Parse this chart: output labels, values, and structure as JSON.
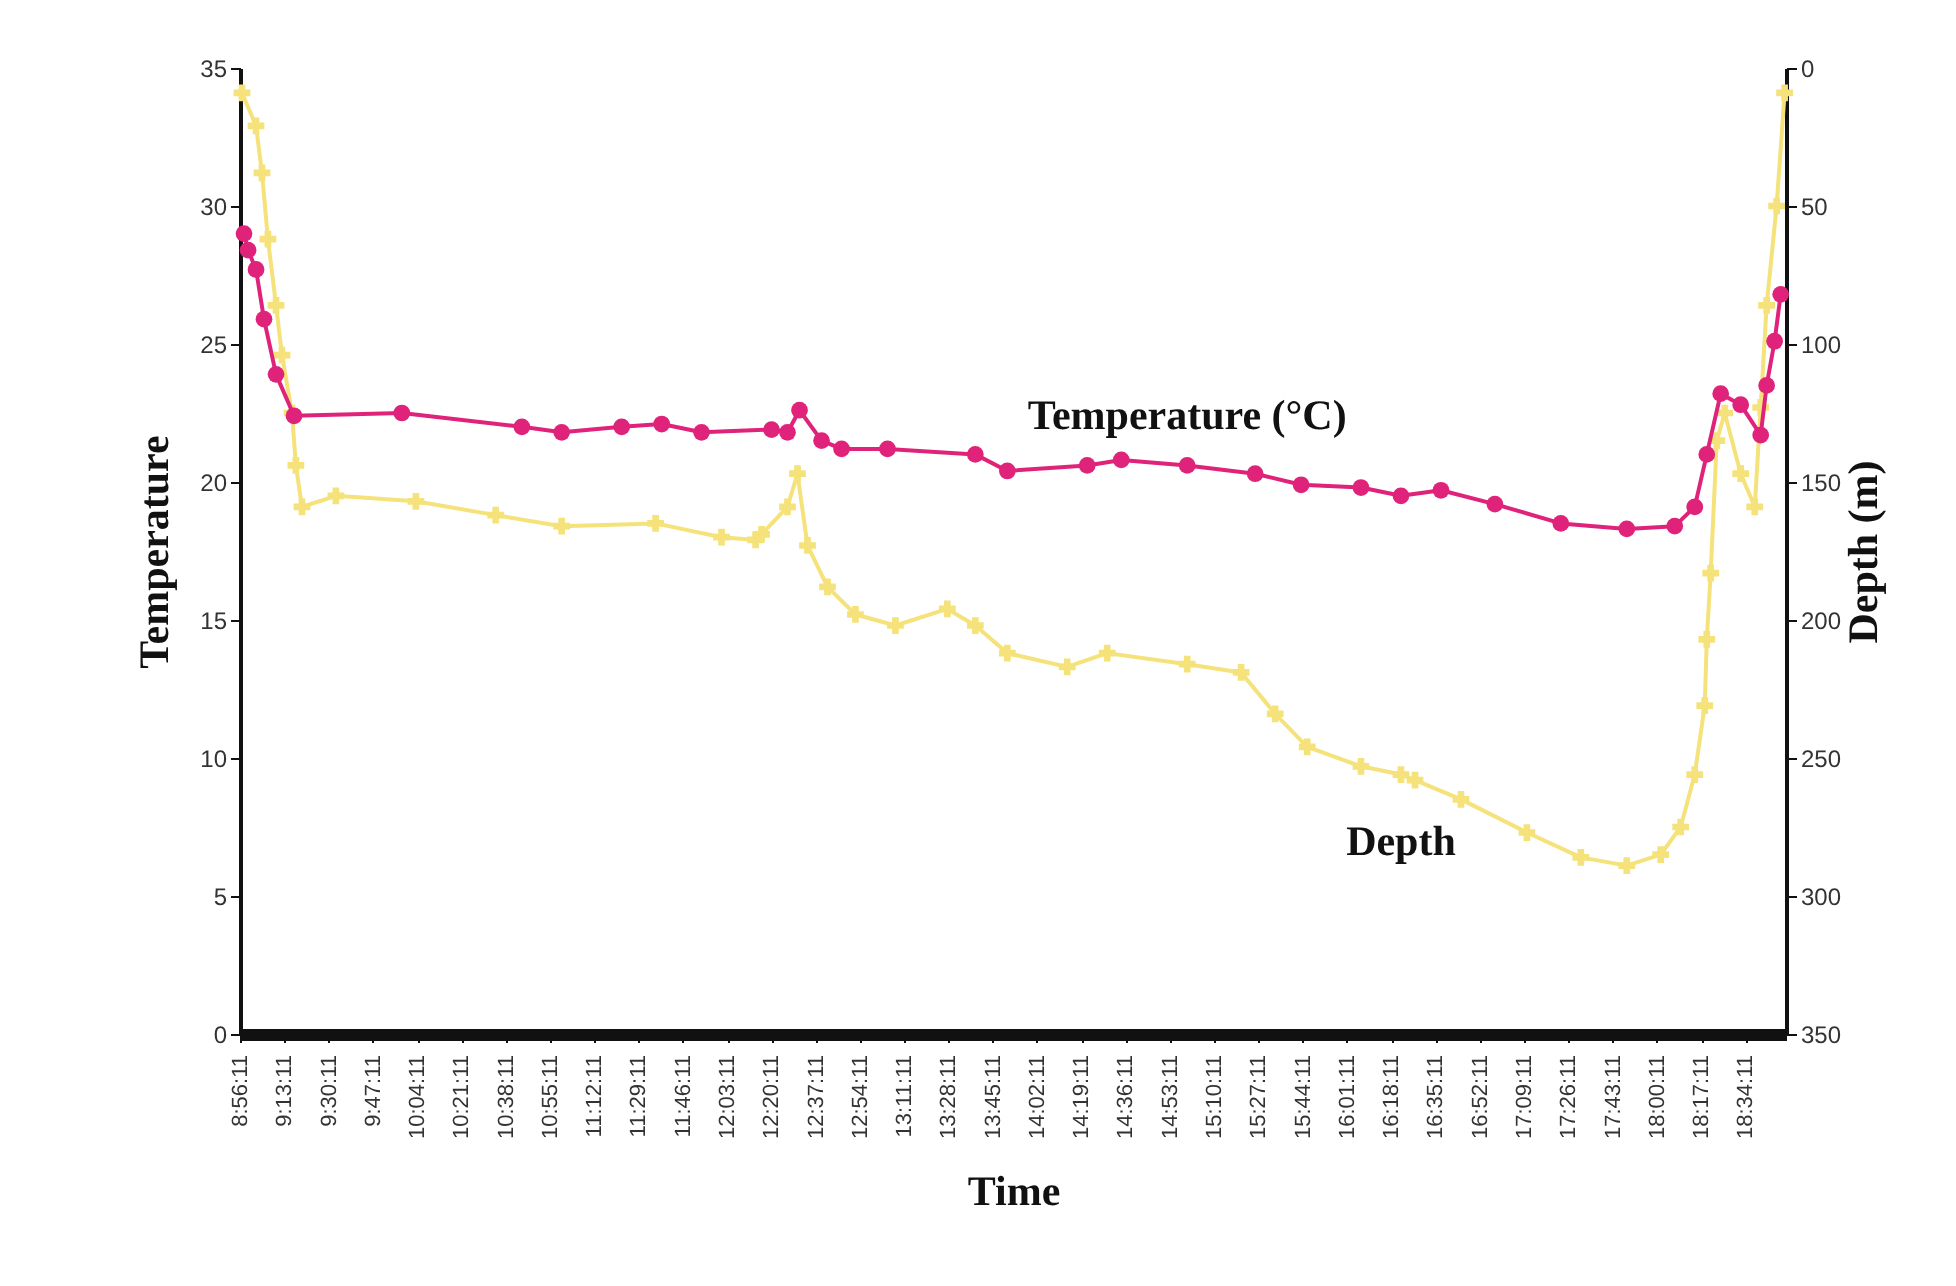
{
  "chart_data": {
    "type": "line",
    "xlabel": "Time",
    "ylabel": "Temperature",
    "y2label": "Depth (m)",
    "xlim": [
      8.9364,
      18.83
    ],
    "xticks": [
      {
        "value": 8.9364,
        "label": "8:56:11"
      },
      {
        "value": 9.2197,
        "label": "9:13:11"
      },
      {
        "value": 9.5031,
        "label": "9:30:11"
      },
      {
        "value": 9.7864,
        "label": "9:47:11"
      },
      {
        "value": 10.0697,
        "label": "10:04:11"
      },
      {
        "value": 10.3531,
        "label": "10:21:11"
      },
      {
        "value": 10.6364,
        "label": "10:38:11"
      },
      {
        "value": 10.9197,
        "label": "10:55:11"
      },
      {
        "value": 11.2031,
        "label": "11:12:11"
      },
      {
        "value": 11.4864,
        "label": "11:29:11"
      },
      {
        "value": 11.7697,
        "label": "11:46:11"
      },
      {
        "value": 12.0531,
        "label": "12:03:11"
      },
      {
        "value": 12.3364,
        "label": "12:20:11"
      },
      {
        "value": 12.6197,
        "label": "12:37:11"
      },
      {
        "value": 12.9031,
        "label": "12:54:11"
      },
      {
        "value": 13.1864,
        "label": "13:11:11"
      },
      {
        "value": 13.4697,
        "label": "13:28:11"
      },
      {
        "value": 13.7531,
        "label": "13:45:11"
      },
      {
        "value": 14.0364,
        "label": "14:02:11"
      },
      {
        "value": 14.3197,
        "label": "14:19:11"
      },
      {
        "value": 14.6031,
        "label": "14:36:11"
      },
      {
        "value": 14.8864,
        "label": "14:53:11"
      },
      {
        "value": 15.1697,
        "label": "15:10:11"
      },
      {
        "value": 15.4531,
        "label": "15:27:11"
      },
      {
        "value": 15.7364,
        "label": "15:44:11"
      },
      {
        "value": 16.0197,
        "label": "16:01:11"
      },
      {
        "value": 16.3031,
        "label": "16:18:11"
      },
      {
        "value": 16.5864,
        "label": "16:35:11"
      },
      {
        "value": 16.8697,
        "label": "16:52:11"
      },
      {
        "value": 17.1531,
        "label": "17:09:11"
      },
      {
        "value": 17.4364,
        "label": "17:26:11"
      },
      {
        "value": 17.7197,
        "label": "17:43:11"
      },
      {
        "value": 18.0031,
        "label": "18:00:11"
      },
      {
        "value": 18.2864,
        "label": "18:17:11"
      },
      {
        "value": 18.5697,
        "label": "18:34:11"
      }
    ],
    "ylim": [
      0,
      35
    ],
    "yticks": [
      0,
      5,
      10,
      15,
      20,
      25,
      30,
      35
    ],
    "y2lim": [
      350,
      0
    ],
    "y2ticks": [
      0,
      50,
      100,
      150,
      200,
      250,
      300,
      350
    ],
    "series": [
      {
        "name": "Temperature (°C)",
        "color": "#e0237a",
        "marker": "circle",
        "x": [
          8.962,
          8.988,
          9.039,
          9.09,
          9.167,
          9.282,
          9.972,
          10.74,
          10.995,
          11.379,
          11.635,
          11.89,
          12.338,
          12.44,
          12.517,
          12.658,
          12.786,
          13.08,
          13.642,
          13.847,
          14.358,
          14.576,
          14.998,
          15.433,
          15.727,
          16.11,
          16.366,
          16.622,
          16.967,
          17.389,
          17.811,
          18.118,
          18.246,
          18.323,
          18.412,
          18.54,
          18.668,
          18.706,
          18.757,
          18.796
        ],
        "values": [
          29.0,
          28.4,
          27.7,
          25.9,
          23.9,
          22.4,
          22.5,
          22.0,
          21.8,
          22.0,
          22.1,
          21.8,
          21.9,
          21.8,
          22.6,
          21.5,
          21.2,
          21.2,
          21.0,
          20.4,
          20.6,
          20.8,
          20.6,
          20.3,
          19.9,
          19.8,
          19.5,
          19.7,
          19.2,
          18.5,
          18.3,
          18.4,
          19.1,
          21.0,
          23.2,
          22.8,
          21.7,
          23.5,
          25.1,
          26.8
        ]
      },
      {
        "name": "Depth",
        "color": "#f5e27a",
        "marker": "cross",
        "axis": "y2",
        "x": [
          8.949,
          9.039,
          9.077,
          9.115,
          9.167,
          9.205,
          9.269,
          9.294,
          9.333,
          9.55,
          10.062,
          10.573,
          10.995,
          11.596,
          12.018,
          12.236,
          12.274,
          12.44,
          12.504,
          12.568,
          12.696,
          12.875,
          13.131,
          13.463,
          13.642,
          13.847,
          14.23,
          14.486,
          14.998,
          15.343,
          15.561,
          15.766,
          16.11,
          16.366,
          16.456,
          16.75,
          17.172,
          17.517,
          17.811,
          18.028,
          18.156,
          18.246,
          18.31,
          18.323,
          18.348,
          18.387,
          18.438,
          18.54,
          18.63,
          18.668,
          18.706,
          18.77,
          18.821
        ],
        "values": [
          9,
          21,
          38,
          62,
          86,
          104,
          125,
          144,
          159,
          155,
          157,
          162,
          166,
          165,
          170,
          171,
          169,
          159,
          147,
          173,
          188,
          198,
          202,
          196,
          202,
          212,
          217,
          212,
          216,
          219,
          234,
          246,
          253,
          256,
          258,
          265,
          277,
          286,
          289,
          285,
          275,
          256,
          231,
          207,
          183,
          135,
          125,
          147,
          159,
          123,
          86,
          50,
          9
        ]
      }
    ]
  }
}
